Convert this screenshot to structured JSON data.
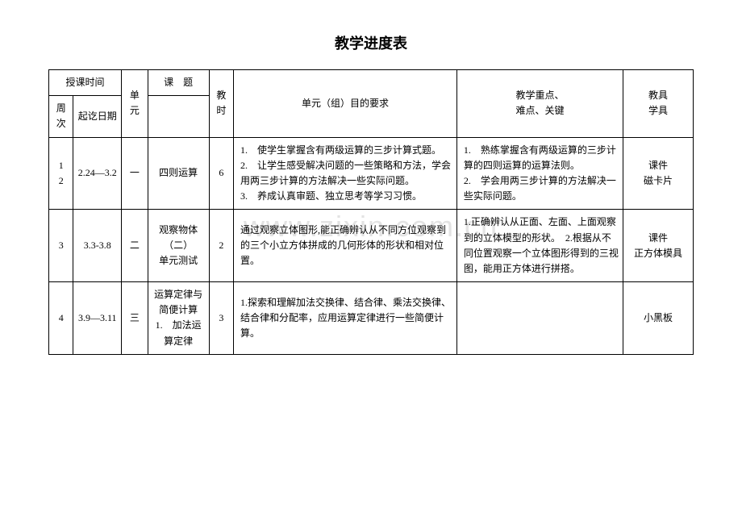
{
  "title": "教学进度表",
  "watermark": "www.zixin.com.cn",
  "headers": {
    "time": "授课时间",
    "week": "周次",
    "daterange": "起讫日期",
    "unit": "单元",
    "topic": "课　题",
    "hours": "教时",
    "objectives": "单元（组）目的要求",
    "keypoints": "教学重点、\n难点、关键",
    "tools": "教具\n学具"
  },
  "rows": [
    {
      "week": "1\n2",
      "date": "2.24—3.2",
      "unit": "一",
      "topic": "四则运算",
      "hours": "6",
      "objectives": "1.　使学生掌握含有两级运算的三步计算式题。\n2.　让学生感受解决问题的一些策略和方法，学会用两三步计算的方法解决一些实际问题。\n3.　养成认真审题、独立思考等学习习惯。",
      "keypoints": "1.　熟练掌握含有两级运算的三步计算的四则运算的运算法则。\n2.　学会用两三步计算的方法解决一些实际问题。",
      "tools": "课件\n磁卡片"
    },
    {
      "week": "3",
      "date": "3.3-3.8",
      "unit": "二",
      "topic": "观察物体（二）\n单元测试",
      "hours": "2",
      "objectives": "通过观察立体图形,能正确辨认从不同方位观察到的三个小立方体拼成的几何形体的形状和相对位置。",
      "keypoints": "1.正确辨认从正面、左面、上面观察到的立体模型的形状。　2.根据从不同位置观察一个立体图形得到的三视图，能用正方体进行拼搭。",
      "tools": "课件\n正方体模具"
    },
    {
      "week": "4",
      "date": "3.9—3.11",
      "unit": "三",
      "topic": "运算定律与简便计算\n1.　加法运算定律",
      "hours": "3",
      "objectives": "1.探索和理解加法交换律、结合律、乘法交换律、结合律和分配率，应用运算定律进行一些简便计算。",
      "keypoints": "",
      "tools": "小黑板"
    }
  ]
}
